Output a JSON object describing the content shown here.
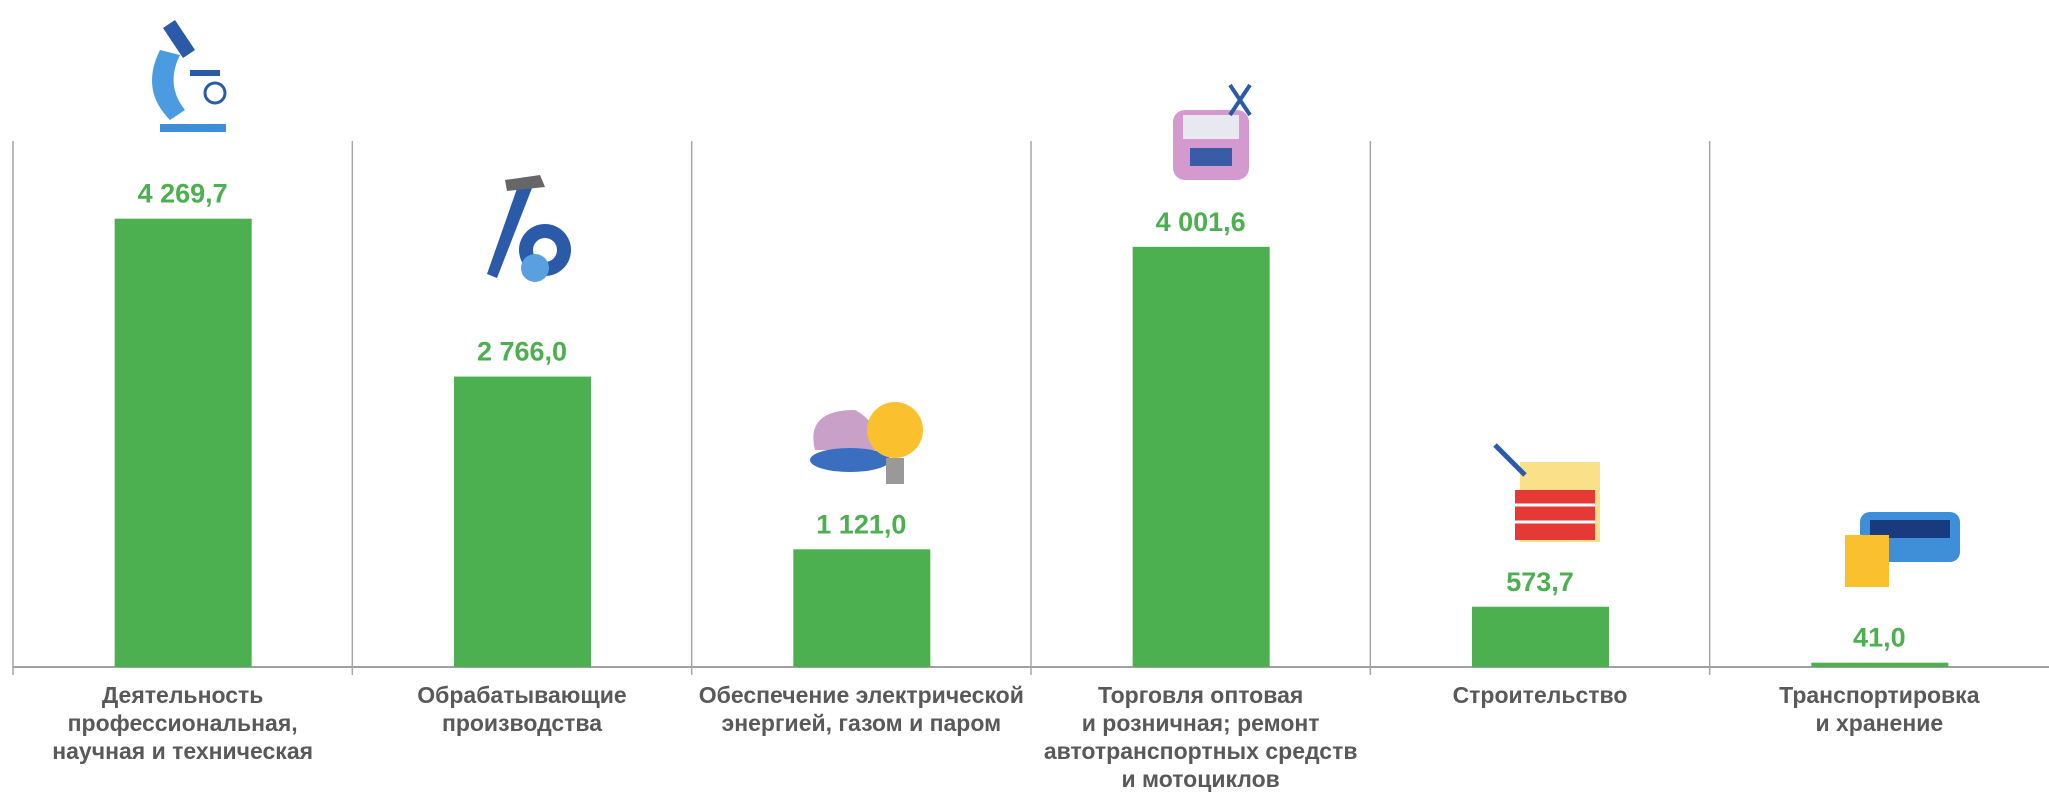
{
  "chart_data": {
    "type": "bar",
    "categories": [
      "Деятельность\nпрофессиональная,\nнаучная и техническая",
      "Обрабатывающие\nпроизводства",
      "Обеспечение электрической\nэнергией, газом и паром",
      "Торговля оптовая\nи розничная; ремонт\nавтотранспортных средств\nи мотоциклов",
      "Строительство",
      "Транспортировка\nи хранение"
    ],
    "values": [
      4269.7,
      2766.0,
      1121.0,
      4001.6,
      573.7,
      41.0
    ],
    "value_labels": [
      "4 269,7",
      "2 766,0",
      "1 121,0",
      "4 001,6",
      "573,7",
      "41,0"
    ],
    "color": "#4caf50"
  }
}
